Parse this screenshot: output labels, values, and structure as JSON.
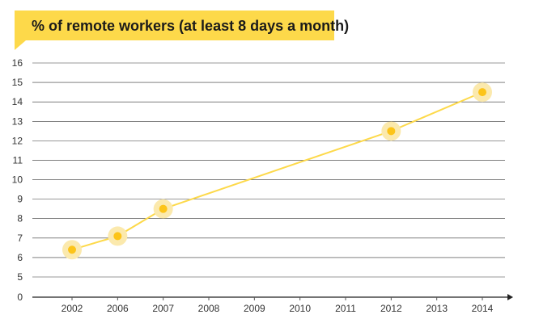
{
  "chart_data": {
    "type": "line",
    "title": "% of remote workers (at least 8 days a month)",
    "xlabel": "",
    "ylabel": "",
    "categories": [
      "2002",
      "2006",
      "2007",
      "2008",
      "2009",
      "2010",
      "2011",
      "2012",
      "2013",
      "2014"
    ],
    "series": [
      {
        "values": [
          6.4,
          7.1,
          8.5,
          null,
          null,
          null,
          null,
          12.5,
          null,
          14.5
        ]
      }
    ],
    "yticks": [
      "0",
      "5",
      "6",
      "7",
      "8",
      "9",
      "10",
      "11",
      "12",
      "13",
      "14",
      "15",
      "16"
    ],
    "ylim": [
      0,
      16
    ],
    "grid": true,
    "legend": "none"
  },
  "colors": {
    "accent": "#fdd94a",
    "line": "#fdd94a",
    "marker_center": "#fcc419",
    "marker_halo": "#fbe9ad",
    "grid": "#333333",
    "text": "#1a1a1a"
  }
}
